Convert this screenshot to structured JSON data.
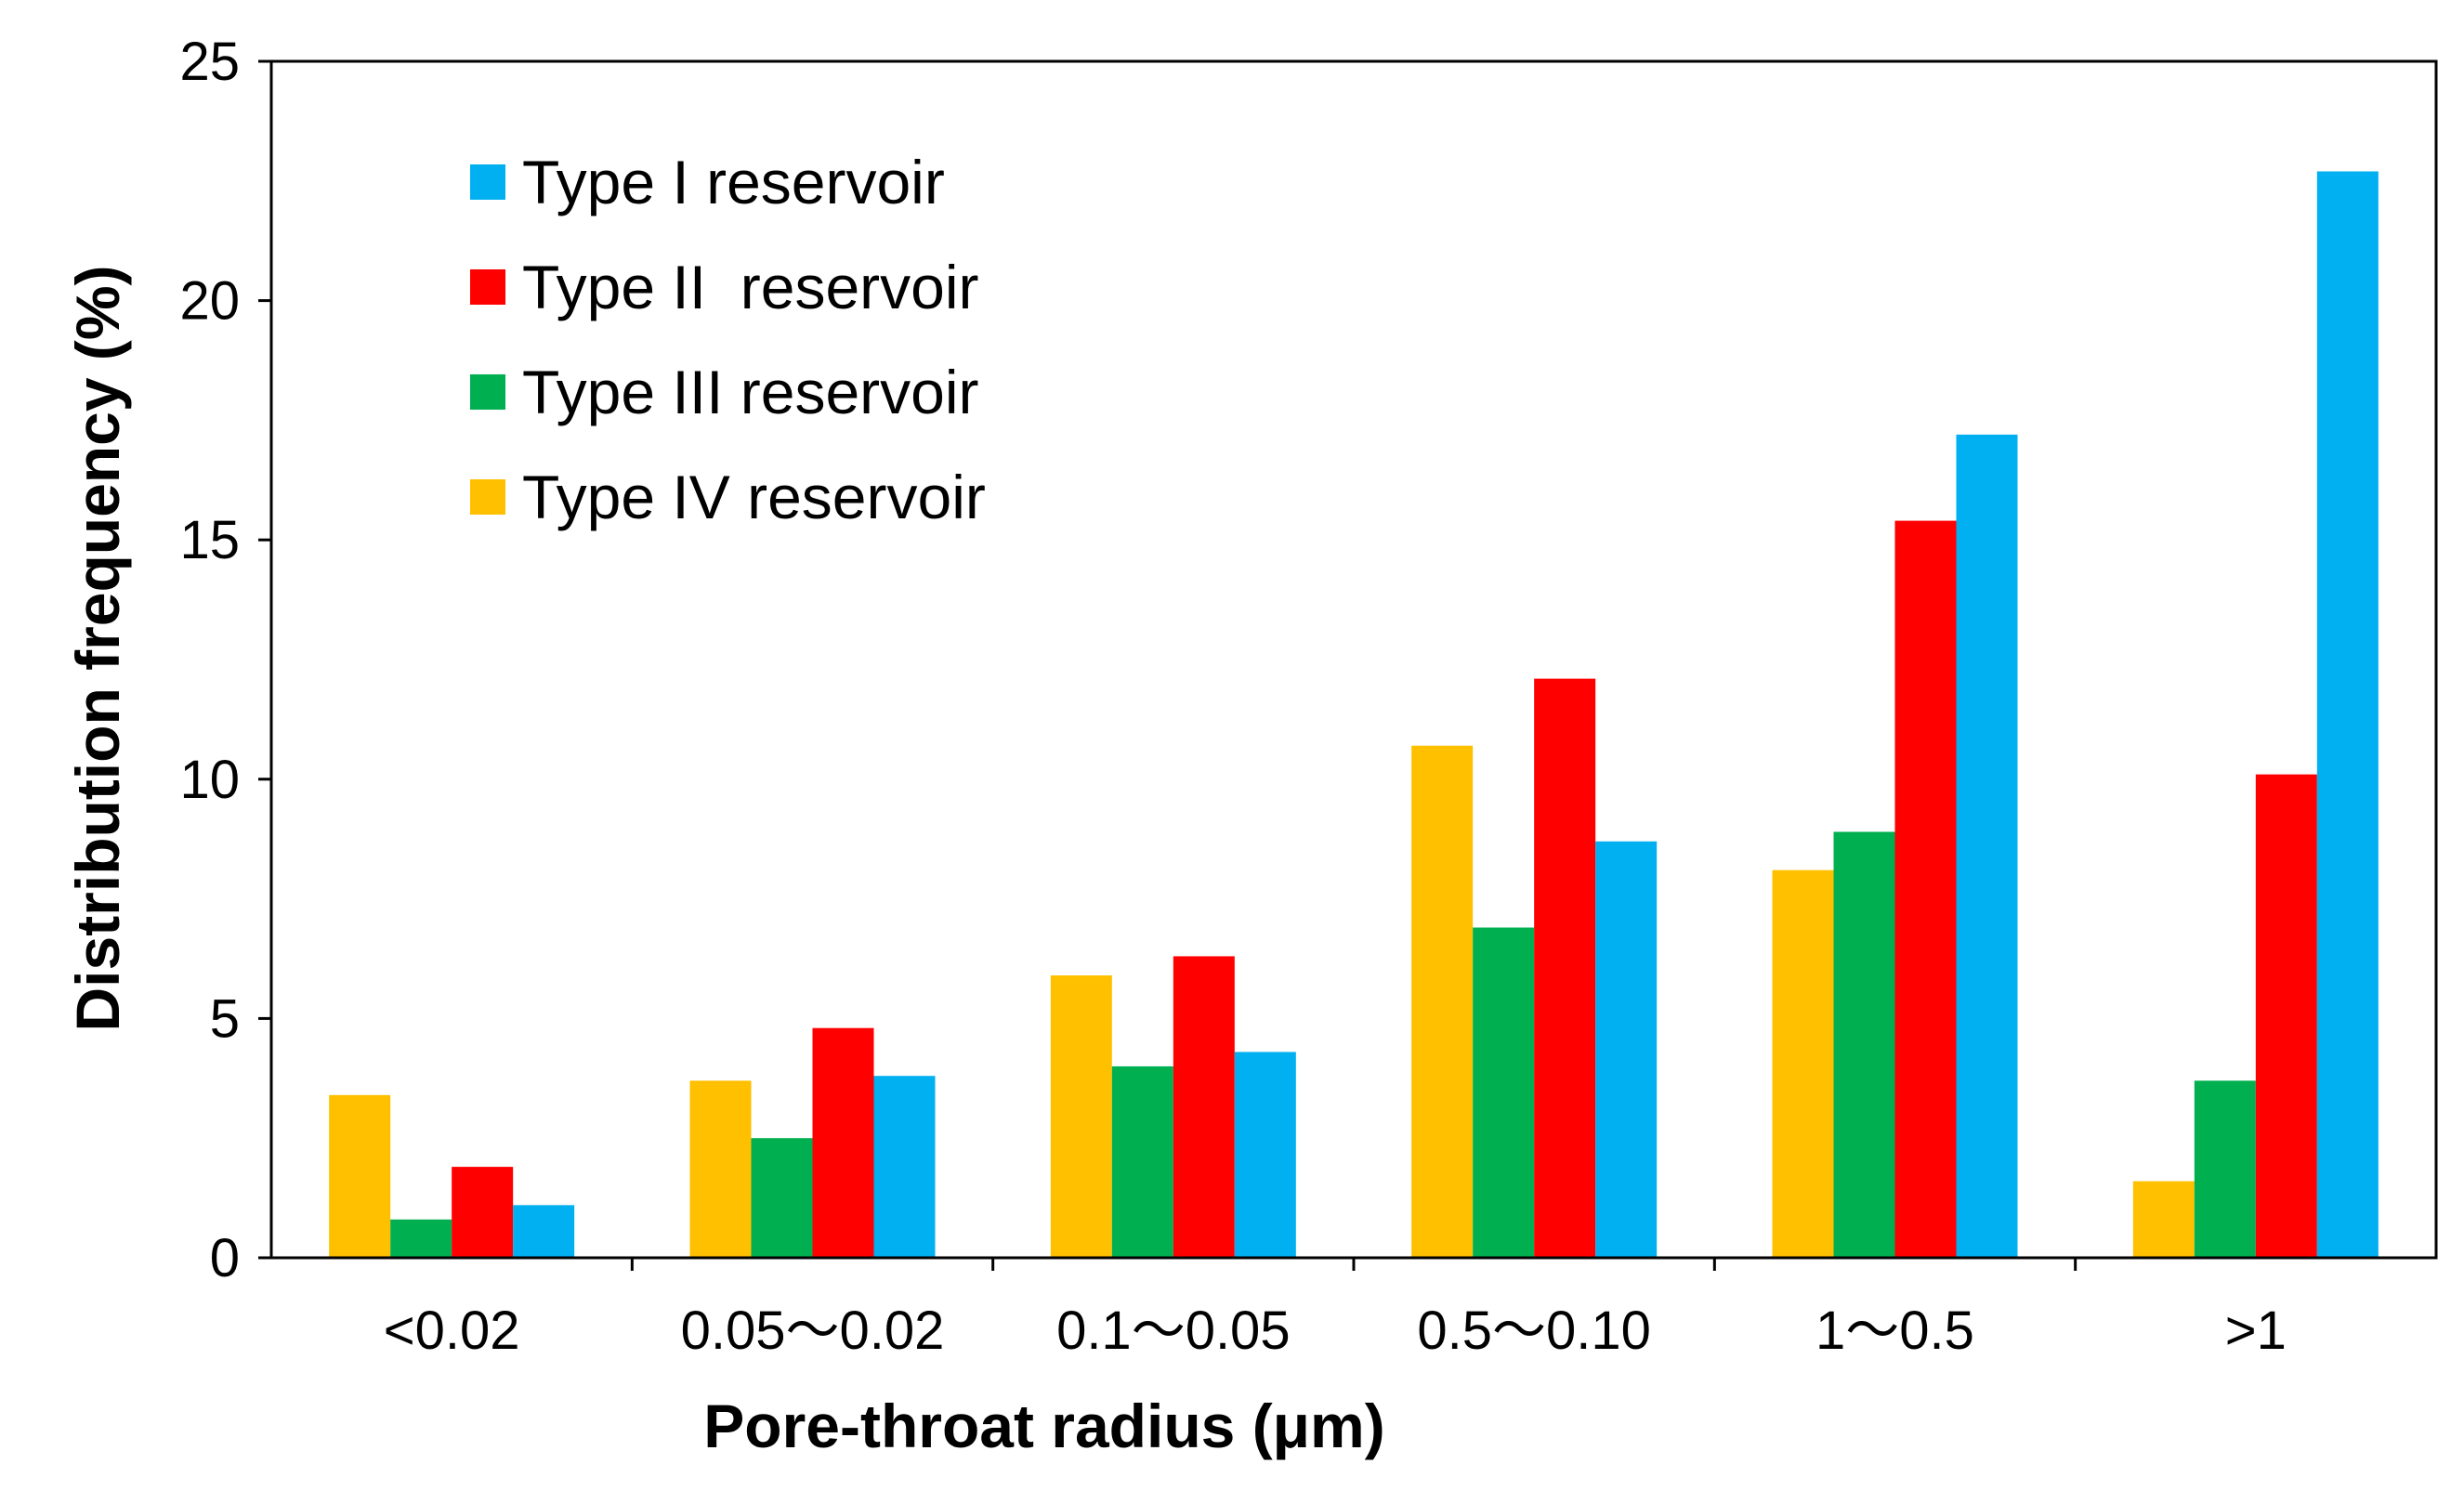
{
  "chart_data": {
    "type": "bar",
    "title": "",
    "xlabel": "Pore-throat radius (μm)",
    "ylabel": "Distribution frequency (%)",
    "ylim": [
      0,
      25
    ],
    "yticks": [
      "0",
      "5",
      "10",
      "15",
      "20",
      "25"
    ],
    "grid": false,
    "legend_position": "top-left",
    "categories": [
      "<0.02",
      "0.05～0.02",
      "0.1～0.05",
      "0.5～0.10",
      "1～0.5",
      ">1"
    ],
    "series": [
      {
        "name": "Type IV reservoir",
        "color": "#FFC000",
        "values": [
          3.4,
          3.7,
          5.9,
          10.7,
          8.1,
          1.6
        ]
      },
      {
        "name": "Type III reservoir",
        "color": "#00B050",
        "values": [
          0.8,
          2.5,
          4.0,
          6.9,
          8.9,
          3.7
        ]
      },
      {
        "name": "Type II  reservoir",
        "color": "#FF0000",
        "values": [
          1.9,
          4.8,
          6.3,
          12.1,
          15.4,
          10.1
        ]
      },
      {
        "name": "Type I reservoir",
        "color": "#00B0F0",
        "values": [
          1.1,
          3.8,
          4.3,
          8.7,
          17.2,
          22.7
        ]
      }
    ],
    "legend_order": [
      "Type I reservoir",
      "Type II  reservoir",
      "Type III reservoir",
      "Type IV reservoir"
    ]
  }
}
